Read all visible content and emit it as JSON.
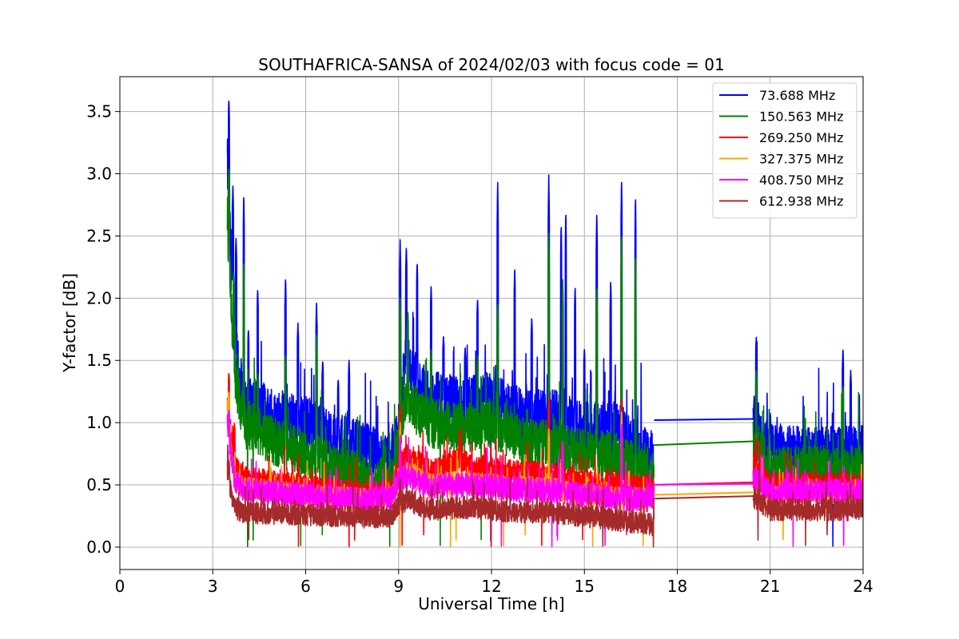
{
  "chart_data": {
    "type": "line",
    "title": "SOUTHAFRICA-SANSA of 2024/02/03 with focus code = 01",
    "xlabel": "Universal Time [h]",
    "ylabel": "Y-factor [dB]",
    "xlim": [
      0,
      24
    ],
    "ylim": [
      -0.18,
      3.78
    ],
    "xticks": [
      0,
      3,
      6,
      9,
      12,
      15,
      18,
      21,
      24
    ],
    "xtick_labels": [
      "0",
      "3",
      "6",
      "9",
      "12",
      "15",
      "18",
      "21",
      "24"
    ],
    "yticks": [
      0.0,
      0.5,
      1.0,
      1.5,
      2.0,
      2.5,
      3.0,
      3.5
    ],
    "ytick_labels": [
      "0.0",
      "0.5",
      "1.0",
      "1.5",
      "2.0",
      "2.5",
      "3.0",
      "3.5"
    ],
    "grid": true,
    "legend_position": "top-right",
    "segments": [
      [
        3.47,
        17.25
      ],
      [
        20.45,
        24.0
      ]
    ],
    "series": [
      {
        "name": " 73.688 MHz",
        "color": "#0000ff",
        "baseline": [
          [
            3.47,
            3.1
          ],
          [
            3.7,
            1.6
          ],
          [
            4.0,
            1.2
          ],
          [
            5.0,
            1.05
          ],
          [
            6.0,
            1.0
          ],
          [
            7.0,
            0.85
          ],
          [
            8.0,
            0.78
          ],
          [
            8.8,
            0.65
          ],
          [
            9.0,
            0.95
          ],
          [
            9.2,
            1.45
          ],
          [
            10.0,
            1.2
          ],
          [
            11.0,
            1.15
          ],
          [
            12.0,
            1.2
          ],
          [
            13.0,
            1.05
          ],
          [
            14.0,
            1.05
          ],
          [
            15.0,
            0.95
          ],
          [
            16.0,
            0.95
          ],
          [
            17.0,
            0.78
          ],
          [
            17.25,
            0.7
          ],
          [
            20.45,
            1.05
          ],
          [
            20.7,
            0.9
          ],
          [
            21.0,
            0.78
          ],
          [
            22.0,
            0.75
          ],
          [
            23.0,
            0.75
          ],
          [
            24.0,
            0.76
          ]
        ],
        "noise": 0.22,
        "spikes": [
          [
            3.52,
            3.6
          ],
          [
            3.65,
            2.9
          ],
          [
            3.75,
            2.5
          ],
          [
            4.0,
            2.84
          ],
          [
            4.15,
            1.75
          ],
          [
            4.45,
            2.08
          ],
          [
            5.35,
            2.17
          ],
          [
            5.75,
            1.8
          ],
          [
            6.35,
            1.96
          ],
          [
            6.55,
            1.5
          ],
          [
            7.05,
            1.35
          ],
          [
            7.4,
            1.5
          ],
          [
            9.05,
            2.47
          ],
          [
            9.25,
            2.42
          ],
          [
            9.6,
            2.29
          ],
          [
            10.05,
            2.11
          ],
          [
            10.45,
            1.7
          ],
          [
            11.15,
            1.6
          ],
          [
            11.55,
            2.0
          ],
          [
            12.2,
            2.93
          ],
          [
            12.75,
            2.25
          ],
          [
            13.3,
            1.85
          ],
          [
            13.85,
            2.99
          ],
          [
            14.25,
            2.6
          ],
          [
            14.4,
            2.7
          ],
          [
            14.7,
            2.1
          ],
          [
            15.0,
            1.6
          ],
          [
            15.4,
            2.7
          ],
          [
            15.85,
            2.15
          ],
          [
            16.2,
            2.97
          ],
          [
            16.65,
            2.83
          ],
          [
            20.55,
            1.7
          ],
          [
            21.0,
            1.08
          ],
          [
            23.35,
            1.6
          ],
          [
            23.6,
            1.42
          ]
        ]
      },
      {
        "name": "150.563 MHz",
        "color": "#008000",
        "baseline": [
          [
            3.47,
            2.65
          ],
          [
            3.7,
            1.4
          ],
          [
            4.0,
            1.0
          ],
          [
            5.0,
            0.85
          ],
          [
            6.0,
            0.75
          ],
          [
            7.0,
            0.62
          ],
          [
            8.0,
            0.55
          ],
          [
            8.8,
            0.52
          ],
          [
            9.0,
            0.85
          ],
          [
            9.2,
            1.2
          ],
          [
            10.0,
            1.0
          ],
          [
            11.0,
            0.95
          ],
          [
            12.0,
            1.0
          ],
          [
            13.0,
            0.85
          ],
          [
            14.0,
            0.82
          ],
          [
            15.0,
            0.75
          ],
          [
            16.0,
            0.72
          ],
          [
            17.0,
            0.6
          ],
          [
            17.25,
            0.55
          ],
          [
            20.45,
            0.85
          ],
          [
            20.7,
            0.75
          ],
          [
            21.0,
            0.62
          ],
          [
            22.0,
            0.62
          ],
          [
            23.0,
            0.62
          ],
          [
            24.0,
            0.63
          ]
        ],
        "noise": 0.2,
        "spikes": [
          [
            3.52,
            3.05
          ],
          [
            3.68,
            2.2
          ],
          [
            4.0,
            2.3
          ],
          [
            4.45,
            1.4
          ],
          [
            5.35,
            1.55
          ],
          [
            6.35,
            1.7
          ],
          [
            9.05,
            2.0
          ],
          [
            9.3,
            1.9
          ],
          [
            10.05,
            1.6
          ],
          [
            11.55,
            1.55
          ],
          [
            12.2,
            1.95
          ],
          [
            13.85,
            2.52
          ],
          [
            14.3,
            2.15
          ],
          [
            15.4,
            2.1
          ],
          [
            16.2,
            2.53
          ],
          [
            16.65,
            2.35
          ],
          [
            20.55,
            1.43
          ],
          [
            23.35,
            1.3
          ]
        ]
      },
      {
        "name": "269.250 MHz",
        "color": "#ff0000",
        "baseline": [
          [
            3.47,
            1.2
          ],
          [
            3.7,
            0.65
          ],
          [
            4.0,
            0.55
          ],
          [
            6.0,
            0.48
          ],
          [
            8.0,
            0.42
          ],
          [
            8.8,
            0.45
          ],
          [
            9.0,
            0.65
          ],
          [
            9.3,
            0.75
          ],
          [
            10.0,
            0.6
          ],
          [
            11.0,
            0.7
          ],
          [
            12.0,
            0.62
          ],
          [
            13.0,
            0.6
          ],
          [
            14.0,
            0.58
          ],
          [
            15.0,
            0.52
          ],
          [
            16.0,
            0.5
          ],
          [
            17.25,
            0.48
          ],
          [
            20.45,
            0.65
          ],
          [
            21.0,
            0.5
          ],
          [
            22.0,
            0.5
          ],
          [
            24.0,
            0.5
          ]
        ],
        "noise": 0.1,
        "spikes": [
          [
            3.52,
            1.4
          ],
          [
            3.7,
            1.0
          ],
          [
            9.05,
            1.15
          ],
          [
            11.0,
            0.85
          ],
          [
            13.85,
            1.2
          ],
          [
            16.2,
            1.2
          ],
          [
            20.55,
            0.88
          ]
        ]
      },
      {
        "name": "327.375 MHz",
        "color": "#ffa500",
        "baseline": [
          [
            3.47,
            1.15
          ],
          [
            3.7,
            0.55
          ],
          [
            4.0,
            0.48
          ],
          [
            6.0,
            0.42
          ],
          [
            8.0,
            0.38
          ],
          [
            8.8,
            0.4
          ],
          [
            9.0,
            0.55
          ],
          [
            9.3,
            0.6
          ],
          [
            10.0,
            0.5
          ],
          [
            11.0,
            0.52
          ],
          [
            12.0,
            0.5
          ],
          [
            13.0,
            0.48
          ],
          [
            14.0,
            0.47
          ],
          [
            15.0,
            0.42
          ],
          [
            16.0,
            0.4
          ],
          [
            17.25,
            0.38
          ],
          [
            20.45,
            0.55
          ],
          [
            21.0,
            0.42
          ],
          [
            22.0,
            0.43
          ],
          [
            24.0,
            0.43
          ]
        ],
        "noise": 0.09,
        "spikes": [
          [
            3.52,
            1.25
          ],
          [
            9.05,
            1.0
          ],
          [
            13.85,
            0.95
          ],
          [
            16.2,
            1.1
          ]
        ]
      },
      {
        "name": "408.750 MHz",
        "color": "#ff00ff",
        "baseline": [
          [
            3.47,
            1.0
          ],
          [
            3.7,
            0.55
          ],
          [
            4.0,
            0.45
          ],
          [
            6.0,
            0.42
          ],
          [
            8.0,
            0.38
          ],
          [
            8.8,
            0.4
          ],
          [
            9.0,
            0.55
          ],
          [
            9.3,
            0.58
          ],
          [
            10.0,
            0.48
          ],
          [
            11.0,
            0.5
          ],
          [
            12.0,
            0.48
          ],
          [
            13.0,
            0.46
          ],
          [
            14.0,
            0.45
          ],
          [
            15.0,
            0.42
          ],
          [
            16.0,
            0.4
          ],
          [
            17.25,
            0.38
          ],
          [
            20.45,
            0.55
          ],
          [
            21.0,
            0.45
          ],
          [
            22.0,
            0.45
          ],
          [
            24.0,
            0.45
          ]
        ],
        "noise": 0.1,
        "spikes": [
          [
            3.52,
            1.1
          ],
          [
            9.05,
            0.9
          ],
          [
            14.3,
            0.85
          ],
          [
            16.2,
            1.0
          ]
        ]
      },
      {
        "name": "612.938 MHz",
        "color": "#a52a2a",
        "baseline": [
          [
            3.47,
            0.6
          ],
          [
            3.7,
            0.32
          ],
          [
            4.0,
            0.28
          ],
          [
            6.0,
            0.26
          ],
          [
            8.0,
            0.24
          ],
          [
            8.8,
            0.25
          ],
          [
            9.0,
            0.35
          ],
          [
            9.3,
            0.38
          ],
          [
            10.0,
            0.3
          ],
          [
            11.0,
            0.32
          ],
          [
            12.0,
            0.3
          ],
          [
            13.0,
            0.28
          ],
          [
            14.0,
            0.28
          ],
          [
            15.0,
            0.25
          ],
          [
            16.0,
            0.22
          ],
          [
            17.25,
            0.18
          ],
          [
            20.45,
            0.4
          ],
          [
            21.0,
            0.3
          ],
          [
            22.0,
            0.3
          ],
          [
            24.0,
            0.3
          ]
        ],
        "noise": 0.09,
        "spikes": [
          [
            3.52,
            0.7
          ],
          [
            9.05,
            0.55
          ]
        ]
      }
    ],
    "gap_connectors": [
      {
        "color": "#0000ff",
        "from": [
          17.25,
          1.02
        ],
        "to": [
          20.45,
          1.03
        ]
      },
      {
        "color": "#008000",
        "from": [
          17.25,
          0.82
        ],
        "to": [
          20.45,
          0.85
        ]
      },
      {
        "color": "#ff0000",
        "from": [
          17.25,
          0.5
        ],
        "to": [
          20.45,
          0.52
        ]
      },
      {
        "color": "#ff00ff",
        "from": [
          17.25,
          0.5
        ],
        "to": [
          20.45,
          0.51
        ]
      },
      {
        "color": "#ffa500",
        "from": [
          17.25,
          0.42
        ],
        "to": [
          20.45,
          0.44
        ]
      },
      {
        "color": "#a52a2a",
        "from": [
          17.25,
          0.39
        ],
        "to": [
          20.45,
          0.41
        ]
      }
    ]
  }
}
